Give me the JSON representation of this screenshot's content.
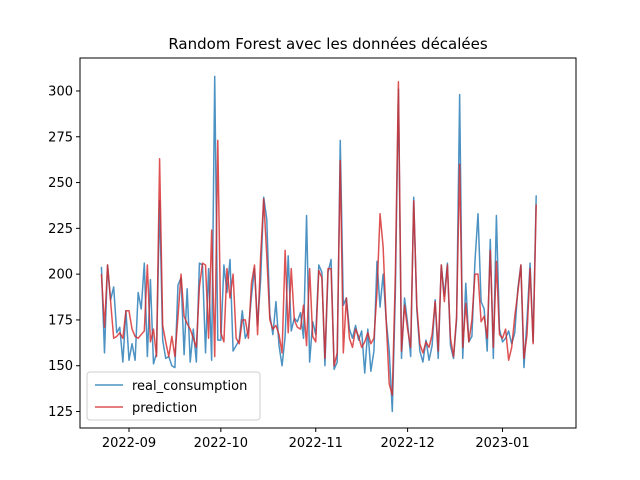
{
  "chart_data": {
    "type": "line",
    "title": "Random Forest avec les données décalées",
    "xlabel": "",
    "ylabel": "",
    "x_start": "2022-08-23",
    "x_step_days": 1,
    "xlim": [
      "2022-08-16",
      "2023-01-25"
    ],
    "ylim": [
      116,
      318
    ],
    "x_ticks": [
      "2022-09-01",
      "2022-10-01",
      "2022-11-01",
      "2022-12-01",
      "2023-01-01"
    ],
    "x_tick_labels": [
      "2022-09",
      "2022-10",
      "2022-11",
      "2022-12",
      "2023-01"
    ],
    "y_ticks": [
      125,
      150,
      175,
      200,
      225,
      250,
      275,
      300
    ],
    "y_tick_labels": [
      "125",
      "150",
      "175",
      "200",
      "225",
      "250",
      "275",
      "300"
    ],
    "grid": false,
    "legend_position": "lower-left",
    "series": [
      {
        "name": "real_consumption",
        "color": "#1f77b4",
        "values": [
          204,
          157,
          205,
          186,
          193,
          168,
          171,
          152,
          180,
          153,
          162,
          153,
          190,
          181,
          206,
          155,
          197,
          151,
          157,
          240,
          164,
          154,
          155,
          150,
          149,
          194,
          198,
          156,
          192,
          152,
          170,
          152,
          206,
          205,
          157,
          203,
          153,
          308,
          164,
          164,
          205,
          190,
          208,
          158,
          161,
          164,
          180,
          165,
          169,
          188,
          203,
          172,
          197,
          242,
          230,
          178,
          167,
          185,
          161,
          150,
          166,
          210,
          169,
          176,
          174,
          179,
          165,
          232,
          152,
          174,
          167,
          205,
          201,
          150,
          201,
          208,
          148,
          152,
          273,
          183,
          187,
          170,
          165,
          172,
          164,
          169,
          146,
          170,
          147,
          158,
          207,
          182,
          200,
          175,
          158,
          125,
          190,
          301,
          154,
          187,
          173,
          155,
          242,
          181,
          158,
          152,
          164,
          153,
          161,
          186,
          154,
          205,
          188,
          206,
          161,
          154,
          175,
          298,
          154,
          195,
          163,
          166,
          207,
          233,
          185,
          181,
          158,
          219,
          154,
          232,
          170,
          163,
          165,
          169,
          162,
          168,
          192,
          205,
          149,
          175,
          206,
          163,
          243
        ]
      },
      {
        "name": "prediction",
        "color": "#d62728",
        "values": [
          200,
          171,
          205,
          185,
          165,
          166,
          168,
          165,
          180,
          180,
          170,
          166,
          165,
          167,
          169,
          205,
          163,
          170,
          155,
          263,
          172,
          163,
          155,
          166,
          155,
          177,
          200,
          177,
          173,
          170,
          165,
          160,
          193,
          206,
          205,
          165,
          224,
          155,
          273,
          168,
          163,
          203,
          187,
          200,
          165,
          162,
          175,
          175,
          165,
          195,
          205,
          167,
          210,
          241,
          210,
          175,
          170,
          172,
          167,
          157,
          213,
          168,
          203,
          175,
          171,
          170,
          183,
          161,
          203,
          166,
          163,
          202,
          198,
          154,
          203,
          203,
          150,
          157,
          262,
          157,
          187,
          165,
          160,
          170,
          166,
          160,
          163,
          168,
          162,
          165,
          190,
          233,
          215,
          175,
          140,
          134,
          200,
          305,
          158,
          183,
          170,
          160,
          240,
          183,
          162,
          157,
          163,
          160,
          167,
          185,
          158,
          205,
          185,
          205,
          165,
          155,
          177,
          260,
          160,
          184,
          163,
          175,
          200,
          200,
          174,
          177,
          165,
          213,
          160,
          207,
          167,
          165,
          170,
          153,
          160,
          177,
          190,
          205,
          154,
          167,
          203,
          162,
          238
        ]
      }
    ]
  }
}
